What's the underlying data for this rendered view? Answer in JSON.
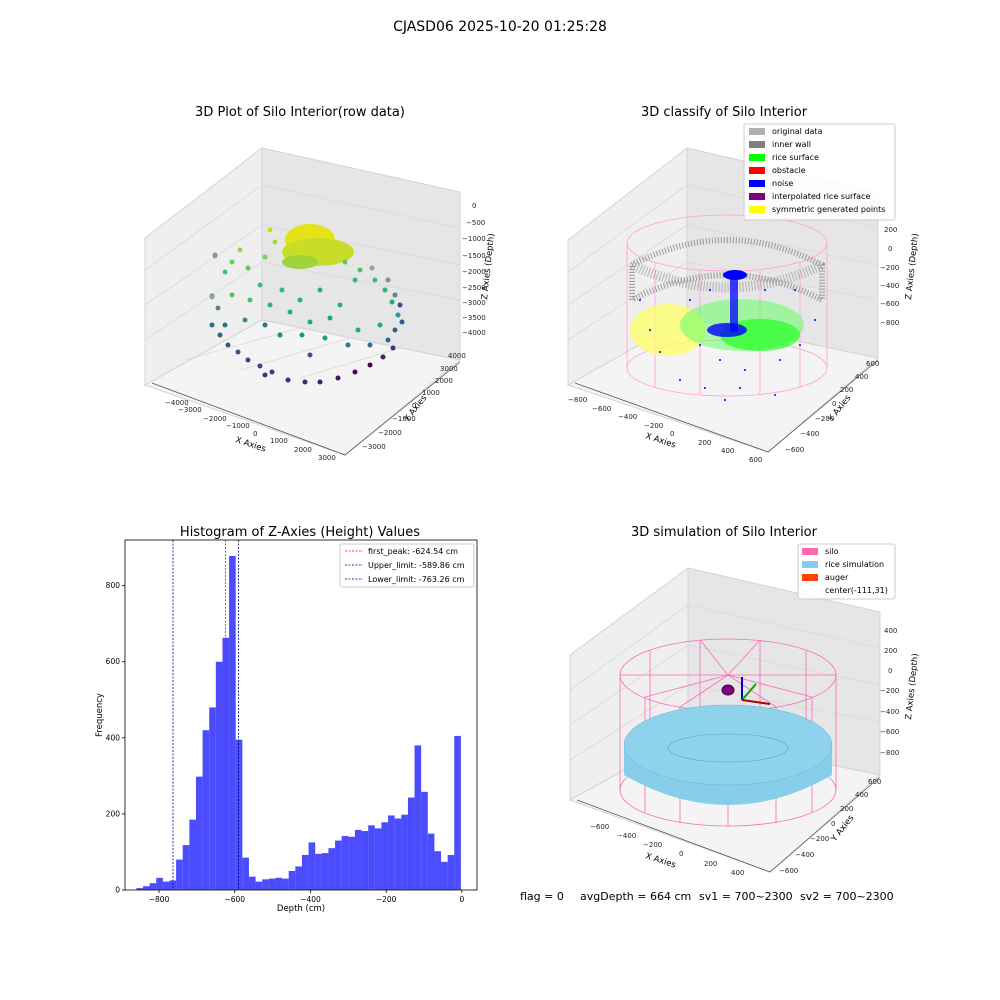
{
  "figure": {
    "suptitle": "CJASD06 2025-10-20 01:25:28",
    "status_text": {
      "flag": "flag = 0",
      "avg_depth": "avgDepth = 664 cm",
      "sv1": "sv1 = 700~2300",
      "sv2": "sv2 = 700~2300"
    }
  },
  "panels": {
    "raw": {
      "title": "3D Plot of Silo Interior(row data)",
      "xlabel": "X Axies",
      "ylabel": "Y Axies",
      "zlabel": "Z Axies (Depth)",
      "xticks": [
        "−4000",
        "−3000",
        "−2000",
        "−1000",
        "0",
        "1000",
        "2000",
        "3000"
      ],
      "yticks": [
        "−3000",
        "−2000",
        "−1000",
        "0",
        "1000",
        "2000",
        "3000",
        "4000"
      ],
      "zticks": [
        "0",
        "−500",
        "−1000",
        "−1500",
        "−2000",
        "−2500",
        "−3000",
        "−3500",
        "−4000"
      ]
    },
    "classify": {
      "title": "3D classify of Silo Interior",
      "xlabel": "X Axies",
      "ylabel": "Y Axies",
      "zlabel": "Z Axies (Depth)",
      "xticks": [
        "−800",
        "−600",
        "−400",
        "−200",
        "0",
        "200",
        "400",
        "600"
      ],
      "yticks": [
        "−600",
        "−400",
        "−200",
        "0",
        "200",
        "400",
        "600"
      ],
      "zticks": [
        "200",
        "0",
        "−200",
        "−400",
        "−600",
        "−800"
      ],
      "legend": [
        {
          "label": "original data",
          "color": "#b0b0b0"
        },
        {
          "label": "inner wall",
          "color": "#808080"
        },
        {
          "label": "rice surface",
          "color": "#00ff00"
        },
        {
          "label": "obstacle",
          "color": "#ff0000"
        },
        {
          "label": "noise",
          "color": "#0000ff"
        },
        {
          "label": "interpolated rice surface",
          "color": "#800080"
        },
        {
          "label": "symmetric generated points",
          "color": "#ffff00"
        }
      ]
    },
    "simulation": {
      "title": "3D simulation of Silo Interior",
      "xlabel": "X Axies",
      "ylabel": "Y Axies",
      "zlabel": "Z Axies (Depth)",
      "xticks": [
        "−600",
        "−400",
        "−200",
        "0",
        "200",
        "400"
      ],
      "yticks": [
        "−600",
        "−400",
        "−200",
        "0",
        "200",
        "400",
        "600"
      ],
      "zticks": [
        "400",
        "200",
        "0",
        "−200",
        "−400",
        "−600",
        "−800"
      ],
      "legend": [
        {
          "label": "silo",
          "color": "#ff69b4"
        },
        {
          "label": "rice simulation",
          "color": "#87ceeb"
        },
        {
          "label": "auger",
          "color": "#ff4500"
        },
        {
          "label": "center(-111,31)",
          "color": ""
        }
      ]
    }
  },
  "chart_data": [
    {
      "type": "bar",
      "title": "Histogram of Z-Axies (Height) Values",
      "xlabel": "Depth (cm)",
      "ylabel": "Frequency",
      "xlim": [
        -890,
        40
      ],
      "ylim": [
        0,
        920
      ],
      "xticks": [
        -800,
        -600,
        -400,
        -200,
        0
      ],
      "yticks": [
        0,
        200,
        400,
        600,
        800
      ],
      "bar_color": "#0000ff",
      "bin_width": 17.5,
      "bins_start": [
        -860,
        -842.5,
        -825,
        -807.5,
        -790,
        -772.5,
        -755,
        -737.5,
        -720,
        -702.5,
        -685,
        -667.5,
        -650,
        -632.5,
        -615,
        -597.5,
        -580,
        -562.5,
        -545,
        -527.5,
        -510,
        -492.5,
        -475,
        -457.5,
        -440,
        -422.5,
        -405,
        -387.5,
        -370,
        -352.5,
        -335,
        -317.5,
        -300,
        -282.5,
        -265,
        -247.5,
        -230,
        -212.5,
        -195,
        -177.5,
        -160,
        -142.5,
        -125,
        -107.5,
        -90,
        -72.5,
        -55,
        -37.5,
        -20
      ],
      "values": [
        5,
        10,
        18,
        32,
        22,
        25,
        80,
        118,
        185,
        298,
        420,
        480,
        600,
        663,
        878,
        395,
        85,
        35,
        22,
        28,
        30,
        32,
        30,
        50,
        62,
        92,
        125,
        95,
        97,
        110,
        130,
        142,
        140,
        158,
        155,
        170,
        162,
        178,
        196,
        188,
        198,
        243,
        380,
        258,
        148,
        102,
        74,
        92,
        405
      ],
      "vlines": [
        {
          "label": "first_peak: -624.54 cm",
          "x": -624.54,
          "color": "#ff0000"
        },
        {
          "label": "Upper_limit: -589.86 cm",
          "x": -589.86,
          "color": "#00008b"
        },
        {
          "label": "Lower_limit: -763.26 cm",
          "x": -763.26,
          "color": "#00008b"
        }
      ],
      "legend_position": "top-right"
    }
  ]
}
